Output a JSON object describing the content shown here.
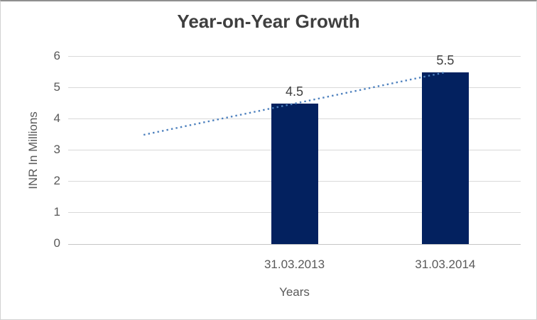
{
  "frame": {
    "background": "#FFFFFF",
    "border_color": "#D2D2D2"
  },
  "chart_data": {
    "type": "bar",
    "title": "Year-on-Year Growth",
    "categories": [
      "31.03.2013",
      "31.03.2014"
    ],
    "values": [
      4.5,
      5.5
    ],
    "data_labels": [
      "4.5",
      "5.5"
    ],
    "xlabel": "Years",
    "ylabel": "INR In Millions",
    "ylim": [
      0,
      6
    ],
    "yticks": [
      "0",
      "1",
      "2",
      "3",
      "4",
      "5",
      "6"
    ],
    "grid": "horizontal",
    "legend": "none",
    "x_slots": 3,
    "bar_slots": [
      1,
      2
    ],
    "bar_color": "#03215F",
    "gridline_color": "#D9D9D9",
    "axis_line_color": "#C6C6C6",
    "text_colors": {
      "title": "#3F3F3F",
      "axis": "#595959",
      "data_label": "#404040"
    },
    "trendline": {
      "style": "dotted",
      "color": "#4E81BE",
      "points": [
        {
          "x_slot": 0,
          "value": 3.5
        },
        {
          "x_slot": 2,
          "value": 5.5
        }
      ]
    }
  }
}
